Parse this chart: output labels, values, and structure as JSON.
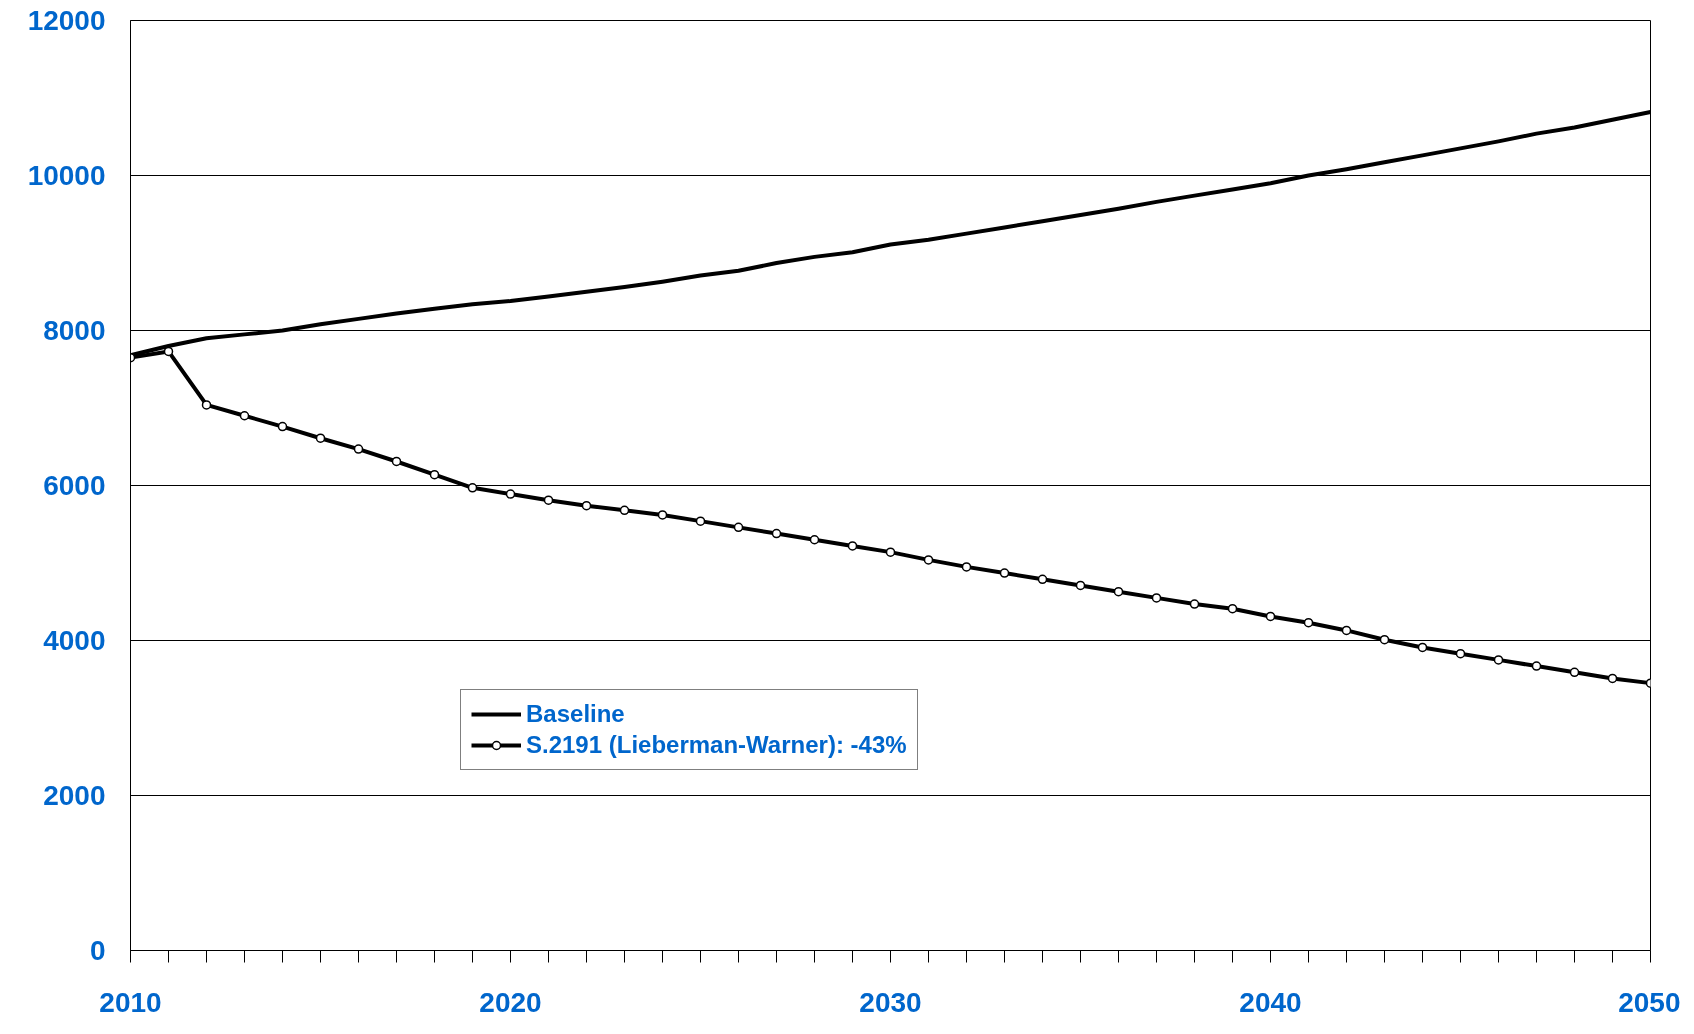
{
  "chart_data": {
    "type": "line",
    "x": [
      2010,
      2011,
      2012,
      2013,
      2014,
      2015,
      2016,
      2017,
      2018,
      2019,
      2020,
      2021,
      2022,
      2023,
      2024,
      2025,
      2026,
      2027,
      2028,
      2029,
      2030,
      2031,
      2032,
      2033,
      2034,
      2035,
      2036,
      2037,
      2038,
      2039,
      2040,
      2041,
      2042,
      2043,
      2044,
      2045,
      2046,
      2047,
      2048,
      2049,
      2050
    ],
    "series": [
      {
        "name": "Baseline",
        "color": "#000000",
        "marker": "none",
        "values": [
          7680,
          7800,
          7900,
          7950,
          8000,
          8080,
          8150,
          8220,
          8280,
          8340,
          8380,
          8440,
          8500,
          8560,
          8630,
          8710,
          8770,
          8870,
          8950,
          9010,
          9110,
          9170,
          9250,
          9330,
          9410,
          9490,
          9570,
          9660,
          9740,
          9820,
          9900,
          10000,
          10080,
          10170,
          10260,
          10350,
          10440,
          10540,
          10620,
          10720,
          10820
        ]
      },
      {
        "name": "S.2191 (Lieberman-Warner): -43%",
        "color": "#000000",
        "marker": "circle",
        "values": [
          7650,
          7730,
          7040,
          6900,
          6760,
          6610,
          6470,
          6310,
          6140,
          5970,
          5890,
          5810,
          5740,
          5680,
          5620,
          5540,
          5460,
          5380,
          5300,
          5220,
          5140,
          5040,
          4950,
          4870,
          4790,
          4710,
          4630,
          4550,
          4470,
          4410,
          4310,
          4230,
          4130,
          4010,
          3910,
          3830,
          3750,
          3670,
          3590,
          3510,
          3450
        ]
      }
    ],
    "xlim": [
      2010,
      2050
    ],
    "ylim": [
      0,
      12000
    ],
    "yticks": [
      0,
      2000,
      4000,
      6000,
      8000,
      10000,
      12000
    ],
    "xticks": [
      2010,
      {
        "value": 2011,
        "label": null
      },
      {
        "value": 2012,
        "label": null
      },
      {
        "value": 2013,
        "label": null
      },
      {
        "value": 2014,
        "label": null
      },
      {
        "value": 2015,
        "label": null
      },
      {
        "value": 2016,
        "label": null
      },
      {
        "value": 2017,
        "label": null
      },
      {
        "value": 2018,
        "label": null
      },
      {
        "value": 2019,
        "label": null
      },
      2020,
      {
        "value": 2021,
        "label": null
      },
      {
        "value": 2022,
        "label": null
      },
      {
        "value": 2023,
        "label": null
      },
      {
        "value": 2024,
        "label": null
      },
      {
        "value": 2025,
        "label": null
      },
      {
        "value": 2026,
        "label": null
      },
      {
        "value": 2027,
        "label": null
      },
      {
        "value": 2028,
        "label": null
      },
      {
        "value": 2029,
        "label": null
      },
      2030,
      {
        "value": 2031,
        "label": null
      },
      {
        "value": 2032,
        "label": null
      },
      {
        "value": 2033,
        "label": null
      },
      {
        "value": 2034,
        "label": null
      },
      {
        "value": 2035,
        "label": null
      },
      {
        "value": 2036,
        "label": null
      },
      {
        "value": 2037,
        "label": null
      },
      {
        "value": 2038,
        "label": null
      },
      {
        "value": 2039,
        "label": null
      },
      2040,
      {
        "value": 2041,
        "label": null
      },
      {
        "value": 2042,
        "label": null
      },
      {
        "value": 2043,
        "label": null
      },
      {
        "value": 2044,
        "label": null
      },
      {
        "value": 2045,
        "label": null
      },
      {
        "value": 2046,
        "label": null
      },
      {
        "value": 2047,
        "label": null
      },
      {
        "value": 2048,
        "label": null
      },
      {
        "value": 2049,
        "label": null
      },
      2050
    ],
    "grid": "y",
    "legend": "bottom left",
    "line_style": "solid"
  }
}
